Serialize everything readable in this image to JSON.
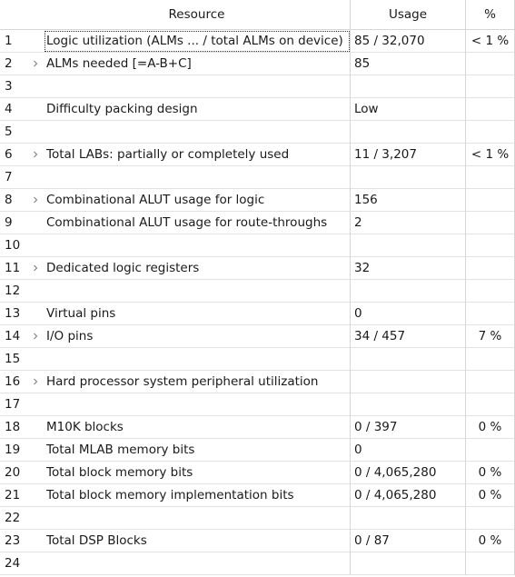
{
  "header": {
    "resource": "Resource",
    "usage": "Usage",
    "percent": "%"
  },
  "rows": [
    {
      "num": "1",
      "resource": "Logic utilization (ALMs ... / total ALMs on device)",
      "usage": "85 / 32,070",
      "percent": "< 1 %",
      "expandable": false
    },
    {
      "num": "2",
      "resource": "ALMs needed [=A-B+C]",
      "usage": "85",
      "percent": "",
      "expandable": true
    },
    {
      "num": "3",
      "resource": "",
      "usage": "",
      "percent": "",
      "expandable": false
    },
    {
      "num": "4",
      "resource": "Difficulty packing design",
      "usage": "Low",
      "percent": "",
      "expandable": false
    },
    {
      "num": "5",
      "resource": "",
      "usage": "",
      "percent": "",
      "expandable": false
    },
    {
      "num": "6",
      "resource": "Total LABs:  partially or completely used",
      "usage": "11 / 3,207",
      "percent": "< 1 %",
      "expandable": true
    },
    {
      "num": "7",
      "resource": "",
      "usage": "",
      "percent": "",
      "expandable": false
    },
    {
      "num": "8",
      "resource": "Combinational ALUT usage for logic",
      "usage": "156",
      "percent": "",
      "expandable": true
    },
    {
      "num": "9",
      "resource": "Combinational ALUT usage for route-throughs",
      "usage": "2",
      "percent": "",
      "expandable": false
    },
    {
      "num": "10",
      "resource": "",
      "usage": "",
      "percent": "",
      "expandable": false
    },
    {
      "num": "11",
      "resource": "Dedicated logic registers",
      "usage": "32",
      "percent": "",
      "expandable": true
    },
    {
      "num": "12",
      "resource": "",
      "usage": "",
      "percent": "",
      "expandable": false
    },
    {
      "num": "13",
      "resource": "Virtual pins",
      "usage": "0",
      "percent": "",
      "expandable": false
    },
    {
      "num": "14",
      "resource": "I/O pins",
      "usage": "34 / 457",
      "percent": "7 %",
      "expandable": true
    },
    {
      "num": "15",
      "resource": "",
      "usage": "",
      "percent": "",
      "expandable": false
    },
    {
      "num": "16",
      "resource": "Hard processor system peripheral utilization",
      "usage": "",
      "percent": "",
      "expandable": true
    },
    {
      "num": "17",
      "resource": "",
      "usage": "",
      "percent": "",
      "expandable": false
    },
    {
      "num": "18",
      "resource": "M10K blocks",
      "usage": "0 / 397",
      "percent": "0 %",
      "expandable": false
    },
    {
      "num": "19",
      "resource": "Total MLAB memory bits",
      "usage": "0",
      "percent": "",
      "expandable": false
    },
    {
      "num": "20",
      "resource": "Total block memory bits",
      "usage": "0 / 4,065,280",
      "percent": "0 %",
      "expandable": false
    },
    {
      "num": "21",
      "resource": "Total block memory implementation bits",
      "usage": "0 / 4,065,280",
      "percent": "0 %",
      "expandable": false
    },
    {
      "num": "22",
      "resource": "",
      "usage": "",
      "percent": "",
      "expandable": false
    },
    {
      "num": "23",
      "resource": "Total DSP Blocks",
      "usage": "0 / 87",
      "percent": "0 %",
      "expandable": false
    },
    {
      "num": "24",
      "resource": "",
      "usage": "",
      "percent": "",
      "expandable": false
    }
  ],
  "icons": {
    "expand": "chevron-right-icon"
  }
}
